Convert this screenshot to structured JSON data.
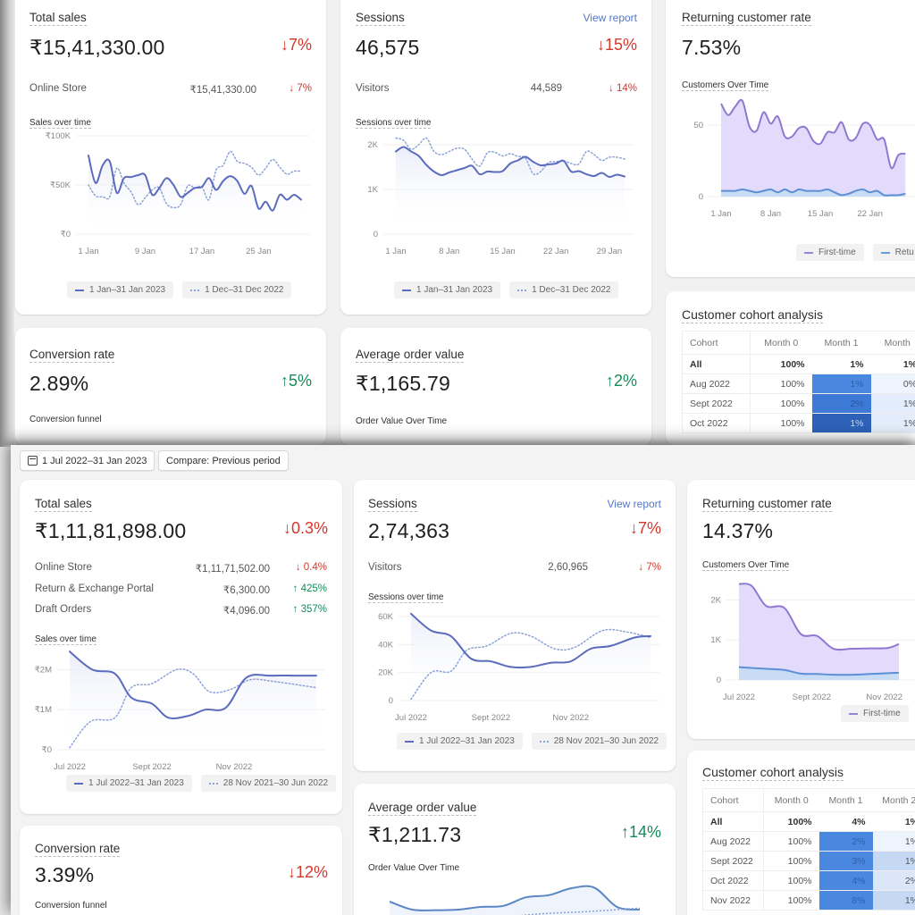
{
  "back_view": {
    "total_sales": {
      "title": "Total sales",
      "value": "₹15,41,330.00",
      "delta": "↓7%",
      "rows": [
        {
          "label": "Online Store",
          "value": "₹15,41,330.00",
          "change": "↓ 7%",
          "direction": "down"
        }
      ],
      "chart_title": "Sales over time",
      "legend": [
        "1 Jan–31 Jan 2023",
        "1 Dec–31 Dec 2022"
      ]
    },
    "sessions": {
      "title": "Sessions",
      "link": "View report",
      "value": "46,575",
      "delta": "↓15%",
      "rows": [
        {
          "label": "Visitors",
          "value": "44,589",
          "change": "↓ 14%",
          "direction": "down"
        }
      ],
      "chart_title": "Sessions over time",
      "legend": [
        "1 Jan–31 Jan 2023",
        "1 Dec–31 Dec 2022"
      ]
    },
    "returning": {
      "title": "Returning customer rate",
      "value": "7.53%",
      "chart_title": "Customers Over Time",
      "legend": [
        "First-time",
        "Retu"
      ]
    },
    "conversion": {
      "title": "Conversion rate",
      "value": "2.89%",
      "delta": "↑5%",
      "sub": "Conversion funnel"
    },
    "aov": {
      "title": "Average order value",
      "value": "₹1,165.79",
      "delta": "↑2%",
      "sub": "Order Value Over Time"
    },
    "cohort": {
      "title": "Customer cohort analysis",
      "headers": [
        "Cohort",
        "Month 0",
        "Month 1",
        "Month"
      ],
      "rows": [
        {
          "cohort": "All",
          "m0": "100%",
          "m1": "1%",
          "m2": "1%"
        },
        {
          "cohort": "Aug 2022",
          "m0": "100%",
          "m1": "1%",
          "m2": "0%"
        },
        {
          "cohort": "Sept 2022",
          "m0": "100%",
          "m1": "2%",
          "m2": "1%"
        },
        {
          "cohort": "Oct 2022",
          "m0": "100%",
          "m1": "1%",
          "m2": "1%"
        }
      ]
    }
  },
  "front_view": {
    "toolbar": {
      "date_range": "1 Jul 2022–31 Jan 2023",
      "date_icon": "calendar-icon",
      "compare": "Compare: Previous period"
    },
    "total_sales": {
      "title": "Total sales",
      "value": "₹1,11,81,898.00",
      "delta": "↓0.3%",
      "rows": [
        {
          "label": "Online Store",
          "value": "₹1,11,71,502.00",
          "change": "↓ 0.4%",
          "direction": "down"
        },
        {
          "label": "Return & Exchange Portal",
          "value": "₹6,300.00",
          "change": "↑ 425%",
          "direction": "up"
        },
        {
          "label": "Draft Orders",
          "value": "₹4,096.00",
          "change": "↑ 357%",
          "direction": "up"
        }
      ],
      "chart_title": "Sales over time",
      "legend": [
        "1 Jul 2022–31 Jan 2023",
        "28 Nov 2021–30 Jun 2022"
      ]
    },
    "sessions": {
      "title": "Sessions",
      "link": "View report",
      "value": "2,74,363",
      "delta": "↓7%",
      "rows": [
        {
          "label": "Visitors",
          "value": "2,60,965",
          "change": "↓ 7%",
          "direction": "down"
        }
      ],
      "chart_title": "Sessions over time",
      "legend": [
        "1 Jul 2022–31 Jan 2023",
        "28 Nov 2021–30 Jun 2022"
      ]
    },
    "returning": {
      "title": "Returning customer rate",
      "value": "14.37%",
      "chart_title": "Customers Over Time",
      "legend": [
        "First-time"
      ]
    },
    "conversion": {
      "title": "Conversion rate",
      "value": "3.39%",
      "delta": "↓12%",
      "sub": "Conversion funnel"
    },
    "aov": {
      "title": "Average order value",
      "value": "₹1,211.73",
      "delta": "↑14%",
      "sub": "Order Value Over Time"
    },
    "cohort": {
      "title": "Customer cohort analysis",
      "headers": [
        "Cohort",
        "Month 0",
        "Month 1",
        "Month 2"
      ],
      "rows": [
        {
          "cohort": "All",
          "m0": "100%",
          "m1": "4%",
          "m2": "1%"
        },
        {
          "cohort": "Aug 2022",
          "m0": "100%",
          "m1": "2%",
          "m2": "1%"
        },
        {
          "cohort": "Sept 2022",
          "m0": "100%",
          "m1": "3%",
          "m2": "1%"
        },
        {
          "cohort": "Oct 2022",
          "m0": "100%",
          "m1": "4%",
          "m2": "2%"
        },
        {
          "cohort": "Nov 2022",
          "m0": "100%",
          "m1": "8%",
          "m2": "1%"
        }
      ]
    }
  },
  "colors": {
    "current_series": "#5b6bbd",
    "previous_series": "#8aa2d8",
    "first_time": "#8e78d0",
    "first_time_fill": "#e3dbfb",
    "returning": "#5b8fd6",
    "returning_fill": "#c9dcf5",
    "negative": "#d4372c",
    "positive": "#178a5c",
    "link": "#5577c9"
  },
  "chart_data": [
    {
      "id": "back_sales",
      "type": "line",
      "title": "Sales over time",
      "ylim": [
        0,
        100000
      ],
      "yticks": [
        "₹0",
        "₹50K",
        "₹100K"
      ],
      "ytick_values": [
        0,
        50000,
        100000
      ],
      "xticks": [
        "1 Jan",
        "9 Jan",
        "17 Jan",
        "25 Jan"
      ],
      "xtick_index": [
        0,
        8,
        16,
        24
      ],
      "series": [
        {
          "name": "1 Jan–31 Jan 2023",
          "style": "solid",
          "values": [
            80000,
            52000,
            70000,
            74000,
            42000,
            57000,
            58000,
            60000,
            60000,
            40000,
            47000,
            57000,
            50000,
            38000,
            42000,
            47000,
            48000,
            57000,
            45000,
            54000,
            59000,
            54000,
            41000,
            49000,
            26000,
            33000,
            24000,
            40000,
            35000,
            40000,
            35000
          ]
        },
        {
          "name": "1 Dec–31 Dec 2022",
          "style": "dotted",
          "values": [
            50000,
            39000,
            38000,
            38000,
            67000,
            52000,
            43000,
            30000,
            37000,
            45000,
            47000,
            31000,
            27000,
            30000,
            49000,
            47000,
            48000,
            35000,
            65000,
            70000,
            84000,
            74000,
            72000,
            68000,
            60000,
            67000,
            76000,
            68000,
            61000,
            64000,
            64000
          ]
        }
      ]
    },
    {
      "id": "back_sessions",
      "type": "line",
      "title": "Sessions over time",
      "ylim": [
        0,
        2000
      ],
      "yticks": [
        "0",
        "1K",
        "2K"
      ],
      "ytick_values": [
        0,
        1000,
        2000
      ],
      "xticks": [
        "1 Jan",
        "8 Jan",
        "15 Jan",
        "22 Jan",
        "29 Jan"
      ],
      "xtick_index": [
        0,
        7,
        14,
        21,
        28
      ],
      "series": [
        {
          "name": "1 Jan–31 Jan 2023",
          "style": "solid",
          "values": [
            1850,
            1950,
            1850,
            1750,
            1550,
            1400,
            1320,
            1380,
            1430,
            1480,
            1530,
            1340,
            1400,
            1390,
            1410,
            1580,
            1650,
            1730,
            1620,
            1540,
            1560,
            1580,
            1640,
            1400,
            1410,
            1340,
            1300,
            1370,
            1280,
            1330,
            1290
          ]
        },
        {
          "name": "1 Dec–31 Dec 2022",
          "style": "dotted",
          "values": [
            2150,
            2100,
            1900,
            2000,
            2150,
            1850,
            1780,
            1850,
            1920,
            1900,
            1680,
            1520,
            1820,
            1830,
            1750,
            1800,
            1740,
            1700,
            1350,
            1400,
            1600,
            1620,
            1640,
            1580,
            1570,
            1850,
            1780,
            1650,
            1720,
            1720,
            1680
          ]
        }
      ]
    },
    {
      "id": "back_customers",
      "type": "area",
      "title": "Customers Over Time",
      "ylim": [
        0,
        70
      ],
      "yticks": [
        "0",
        "50"
      ],
      "ytick_values": [
        0,
        50
      ],
      "xticks": [
        "1 Jan",
        "8 Jan",
        "15 Jan",
        "22 Jan"
      ],
      "xtick_index": [
        0,
        7,
        14,
        21
      ],
      "series": [
        {
          "name": "First-time",
          "values": [
            65,
            57,
            63,
            67,
            49,
            46,
            59,
            51,
            56,
            42,
            42,
            48,
            48,
            39,
            37,
            45,
            45,
            52,
            40,
            41,
            51,
            50,
            40,
            40,
            20,
            29,
            30
          ]
        },
        {
          "name": "Returning",
          "values": [
            4,
            4,
            4,
            5,
            4,
            3,
            4,
            5,
            3,
            5,
            3,
            5,
            4,
            4,
            4,
            5,
            3,
            1,
            2,
            4,
            5,
            3,
            4,
            1,
            1,
            1,
            2
          ]
        }
      ]
    },
    {
      "id": "front_sales",
      "type": "line",
      "title": "Sales over time",
      "ylim": [
        0,
        2500000
      ],
      "yticks": [
        "₹0",
        "₹1M",
        "₹2M"
      ],
      "ytick_values": [
        0,
        1000000,
        2000000
      ],
      "xticks": [
        "Jul 2022",
        "Sept 2022",
        "Nov 2022"
      ],
      "xtick_index": [
        0,
        2,
        4
      ],
      "series": [
        {
          "name": "1 Jul 2022–31 Jan 2023",
          "style": "solid",
          "values": [
            2450000,
            2000000,
            1900000,
            1300000,
            1150000,
            800000,
            850000,
            1000000,
            1050000,
            1800000,
            1850000,
            1850000,
            1850000
          ],
          "x": [
            0,
            0.55,
            1.1,
            1.5,
            2.0,
            2.4,
            2.9,
            3.3,
            3.8,
            4.3,
            4.9,
            5.5,
            6.0
          ]
        },
        {
          "name": "28 Nov 2021–30 Jun 2022",
          "style": "dotted",
          "values": [
            50000,
            700000,
            800000,
            1550000,
            1650000,
            2000000,
            1900000,
            1450000,
            1500000,
            1750000,
            1700000,
            1550000
          ],
          "x": [
            0,
            0.5,
            1.1,
            1.5,
            2.0,
            2.6,
            3.0,
            3.4,
            3.9,
            4.4,
            5.0,
            6.0
          ]
        }
      ]
    },
    {
      "id": "front_sessions",
      "type": "line",
      "title": "Sessions over time",
      "ylim": [
        0,
        60000
      ],
      "yticks": [
        "0",
        "20K",
        "40K",
        "60K"
      ],
      "ytick_values": [
        0,
        20000,
        40000,
        60000
      ],
      "xticks": [
        "Jul 2022",
        "Sept 2022",
        "Nov 2022"
      ],
      "xtick_index": [
        0,
        2,
        4
      ],
      "series": [
        {
          "name": "1 Jul 2022–31 Jan 2023",
          "style": "solid",
          "values": [
            62000,
            50000,
            46000,
            30000,
            28000,
            24000,
            24000,
            27000,
            28000,
            37000,
            39000,
            45000,
            46000
          ],
          "x": [
            0,
            0.5,
            1.0,
            1.5,
            2.0,
            2.5,
            3.0,
            3.5,
            4.0,
            4.5,
            5.0,
            5.6,
            6.0
          ]
        },
        {
          "name": "28 Nov 2021–30 Jun 2022",
          "style": "dotted",
          "values": [
            1000,
            20000,
            21000,
            36000,
            39000,
            48000,
            46000,
            37000,
            38000,
            50000,
            49000,
            45000
          ],
          "x": [
            0,
            0.5,
            1.0,
            1.4,
            1.9,
            2.5,
            3.0,
            3.6,
            4.1,
            4.8,
            5.4,
            6.0
          ]
        }
      ]
    },
    {
      "id": "front_customers",
      "type": "area",
      "title": "Customers Over Time",
      "ylim": [
        0,
        2500
      ],
      "yticks": [
        "0",
        "1K",
        "2K"
      ],
      "ytick_values": [
        0,
        1000,
        2000
      ],
      "xticks": [
        "Jul 2022",
        "Sept 2022",
        "Nov 2022"
      ],
      "xtick_index": [
        0,
        2,
        4
      ],
      "series": [
        {
          "name": "First-time",
          "values": [
            2400,
            2350,
            1850,
            1800,
            1150,
            1100,
            780,
            780,
            790,
            800,
            900
          ],
          "x": [
            0,
            0.35,
            0.75,
            1.25,
            1.7,
            2.15,
            2.6,
            3.1,
            3.6,
            4.1,
            4.4
          ]
        },
        {
          "name": "Returning",
          "values": [
            320,
            300,
            280,
            250,
            160,
            150,
            130,
            130,
            150,
            170,
            180
          ],
          "x": [
            0,
            0.35,
            0.75,
            1.25,
            1.7,
            2.15,
            2.6,
            3.1,
            3.6,
            4.1,
            4.4
          ]
        }
      ]
    },
    {
      "id": "front_aov",
      "type": "line",
      "title": "Order Value Over Time",
      "series": [
        {
          "name": "current",
          "style": "solid",
          "values": [
            1300,
            1150,
            1140,
            1150,
            1200,
            1220,
            1380,
            1420,
            1550,
            1560,
            1200,
            1150
          ]
        },
        {
          "name": "previous",
          "style": "dotted",
          "values": [
            null,
            null,
            null,
            null,
            null,
            1000,
            1050,
            1080,
            1100,
            1120,
            1150,
            1180
          ]
        }
      ]
    }
  ]
}
